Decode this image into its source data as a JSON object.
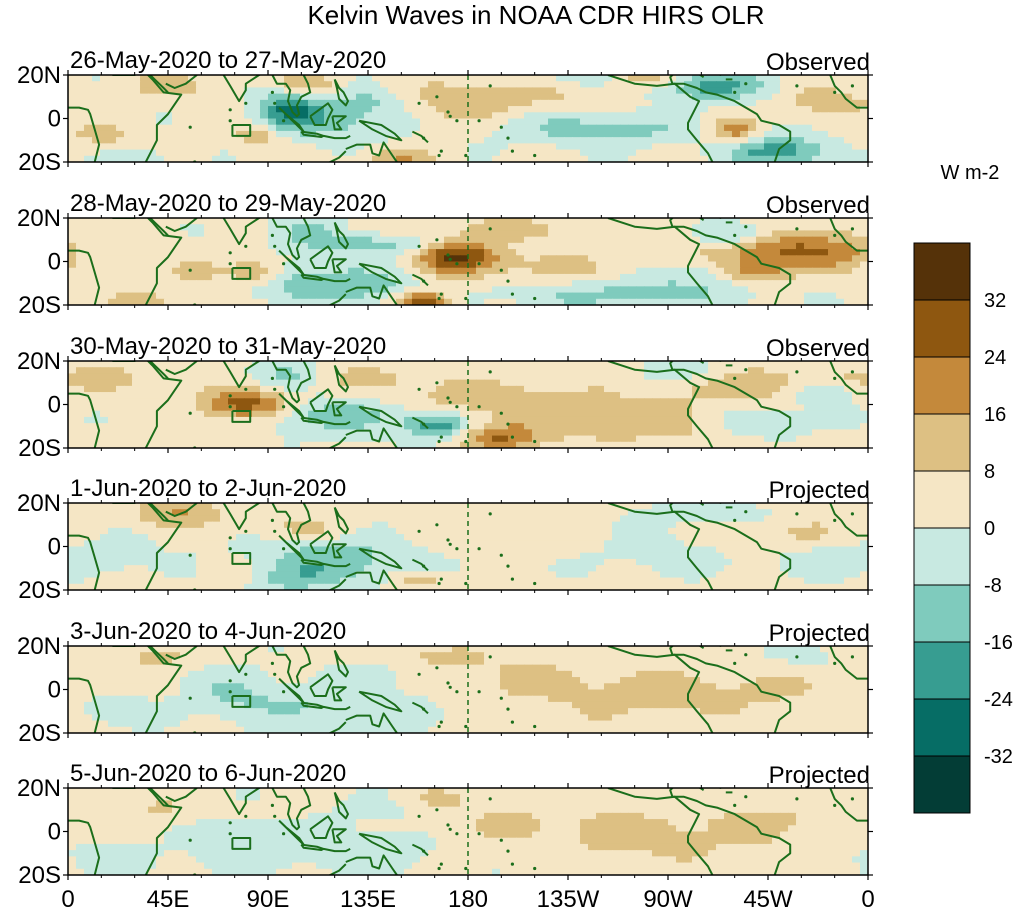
{
  "chart_data": {
    "type": "heatmap",
    "title": "Kelvin Waves in NOAA CDR HIRS OLR",
    "units_label": "W m-2",
    "panels": [
      {
        "date_range": "26-May-2020 to 27-May-2020",
        "status": "Observed"
      },
      {
        "date_range": "28-May-2020 to 29-May-2020",
        "status": "Observed"
      },
      {
        "date_range": "30-May-2020 to 31-May-2020",
        "status": "Observed"
      },
      {
        "date_range": "1-Jun-2020 to 2-Jun-2020",
        "status": "Projected"
      },
      {
        "date_range": "3-Jun-2020 to 4-Jun-2020",
        "status": "Projected"
      },
      {
        "date_range": "5-Jun-2020 to 6-Jun-2020",
        "status": "Projected"
      }
    ],
    "y_ticks": [
      {
        "lat": 20,
        "label": "20N"
      },
      {
        "lat": 0,
        "label": "0"
      },
      {
        "lat": -20,
        "label": "20S"
      }
    ],
    "x_ticks": [
      {
        "lon": 0,
        "label": "0"
      },
      {
        "lon": 45,
        "label": "45E"
      },
      {
        "lon": 90,
        "label": "90E"
      },
      {
        "lon": 135,
        "label": "135E"
      },
      {
        "lon": 180,
        "label": "180"
      },
      {
        "lon": 225,
        "label": "135W"
      },
      {
        "lon": 270,
        "label": "90W"
      },
      {
        "lon": 315,
        "label": "45W"
      },
      {
        "lon": 360,
        "label": "0"
      }
    ],
    "xlim": [
      0,
      360
    ],
    "ylim": [
      -20,
      20
    ],
    "dateline_lon": 180,
    "colorbar": {
      "levels": [
        32,
        24,
        16,
        8,
        0,
        -8,
        -16,
        -24,
        -32
      ],
      "colors": [
        "#553209",
        "#8e5710",
        "#c4893b",
        "#ddc083",
        "#f5e6c5",
        "#c8e9e1",
        "#7fcbbd",
        "#379d91",
        "#066d65",
        "#033d36"
      ]
    },
    "anomaly_blobs": [
      [
        [
          45,
          15,
          12,
          4,
          0.7
        ],
        [
          85,
          -8,
          8,
          4,
          0.8
        ],
        [
          108,
          15,
          10,
          5,
          0.9
        ],
        [
          150,
          -18,
          10,
          3,
          0.9
        ],
        [
          118,
          -2,
          20,
          6,
          -0.8
        ],
        [
          135,
          8,
          14,
          5,
          -0.7
        ],
        [
          100,
          5,
          10,
          6,
          -1.5
        ],
        [
          15,
          -8,
          12,
          5,
          0.5
        ],
        [
          30,
          -18,
          10,
          3,
          -0.6
        ],
        [
          200,
          12,
          30,
          5,
          0.6
        ],
        [
          240,
          -5,
          30,
          5,
          -0.9
        ],
        [
          300,
          -6,
          8,
          4,
          1.2
        ],
        [
          290,
          15,
          18,
          5,
          -1.3
        ],
        [
          320,
          -15,
          15,
          5,
          -1.5
        ],
        [
          340,
          8,
          15,
          5,
          0.7
        ],
        [
          260,
          18,
          12,
          3,
          1.0
        ],
        [
          175,
          5,
          20,
          6,
          0.5
        ],
        [
          230,
          18,
          25,
          4,
          -0.5
        ]
      ],
      [
        [
          60,
          -5,
          15,
          5,
          0.4
        ],
        [
          85,
          -5,
          8,
          4,
          1.0
        ],
        [
          175,
          3,
          12,
          5,
          1.9
        ],
        [
          160,
          -18,
          8,
          3,
          2.0
        ],
        [
          120,
          -10,
          25,
          6,
          -1.2
        ],
        [
          140,
          8,
          25,
          4,
          -0.9
        ],
        [
          330,
          5,
          30,
          6,
          1.5
        ],
        [
          310,
          -5,
          10,
          4,
          1.0
        ],
        [
          300,
          12,
          12,
          4,
          -1.0
        ],
        [
          250,
          -15,
          40,
          5,
          -0.8
        ],
        [
          205,
          -3,
          45,
          6,
          0.5
        ],
        [
          200,
          15,
          40,
          4,
          0.5
        ],
        [
          10,
          5,
          10,
          6,
          -0.5
        ],
        [
          30,
          -18,
          12,
          3,
          0.6
        ],
        [
          105,
          15,
          12,
          5,
          -0.6
        ],
        [
          280,
          -5,
          15,
          5,
          -0.6
        ]
      ],
      [
        [
          80,
          0,
          14,
          5,
          1.8
        ],
        [
          100,
          14,
          12,
          5,
          -0.7
        ],
        [
          120,
          -5,
          25,
          6,
          -0.9
        ],
        [
          165,
          -10,
          10,
          4,
          -1.5
        ],
        [
          195,
          -15,
          12,
          4,
          1.3
        ],
        [
          190,
          3,
          30,
          6,
          0.6
        ],
        [
          250,
          -8,
          40,
          8,
          0.6
        ],
        [
          310,
          10,
          30,
          6,
          0.7
        ],
        [
          315,
          -8,
          15,
          5,
          -0.8
        ],
        [
          340,
          5,
          10,
          4,
          -0.9
        ],
        [
          20,
          12,
          15,
          5,
          0.5
        ],
        [
          135,
          12,
          20,
          5,
          0.5
        ],
        [
          280,
          15,
          15,
          4,
          -0.6
        ]
      ],
      [
        [
          50,
          15,
          15,
          4,
          0.9
        ],
        [
          75,
          -12,
          10,
          5,
          0.6
        ],
        [
          120,
          -5,
          28,
          7,
          -0.9
        ],
        [
          160,
          -15,
          8,
          3,
          0.8
        ],
        [
          105,
          8,
          15,
          5,
          0.5
        ],
        [
          100,
          -15,
          20,
          5,
          -0.7
        ],
        [
          20,
          -5,
          15,
          6,
          -0.4
        ],
        [
          215,
          3,
          40,
          7,
          0.4
        ],
        [
          260,
          0,
          30,
          8,
          -0.5
        ],
        [
          320,
          5,
          25,
          6,
          0.5
        ],
        [
          340,
          -5,
          20,
          6,
          -0.4
        ],
        [
          290,
          15,
          20,
          4,
          -0.5
        ]
      ],
      [
        [
          75,
          -2,
          15,
          8,
          -0.6
        ],
        [
          125,
          -8,
          28,
          7,
          -0.7
        ],
        [
          140,
          8,
          15,
          5,
          -0.5
        ],
        [
          160,
          15,
          20,
          4,
          0.4
        ],
        [
          40,
          15,
          15,
          4,
          0.5
        ],
        [
          200,
          5,
          40,
          8,
          0.4
        ],
        [
          255,
          -5,
          30,
          8,
          0.4
        ],
        [
          310,
          0,
          30,
          8,
          0.4
        ],
        [
          330,
          15,
          15,
          4,
          -0.3
        ],
        [
          20,
          -10,
          15,
          5,
          -0.4
        ]
      ],
      [
        [
          75,
          -5,
          14,
          8,
          -0.6
        ],
        [
          130,
          -8,
          25,
          7,
          -0.6
        ],
        [
          140,
          10,
          15,
          5,
          -0.4
        ],
        [
          40,
          10,
          15,
          5,
          0.4
        ],
        [
          210,
          3,
          45,
          9,
          0.4
        ],
        [
          270,
          -5,
          30,
          8,
          0.4
        ],
        [
          320,
          5,
          25,
          7,
          0.4
        ],
        [
          20,
          -12,
          15,
          5,
          -0.4
        ],
        [
          165,
          15,
          15,
          4,
          0.3
        ]
      ]
    ]
  }
}
